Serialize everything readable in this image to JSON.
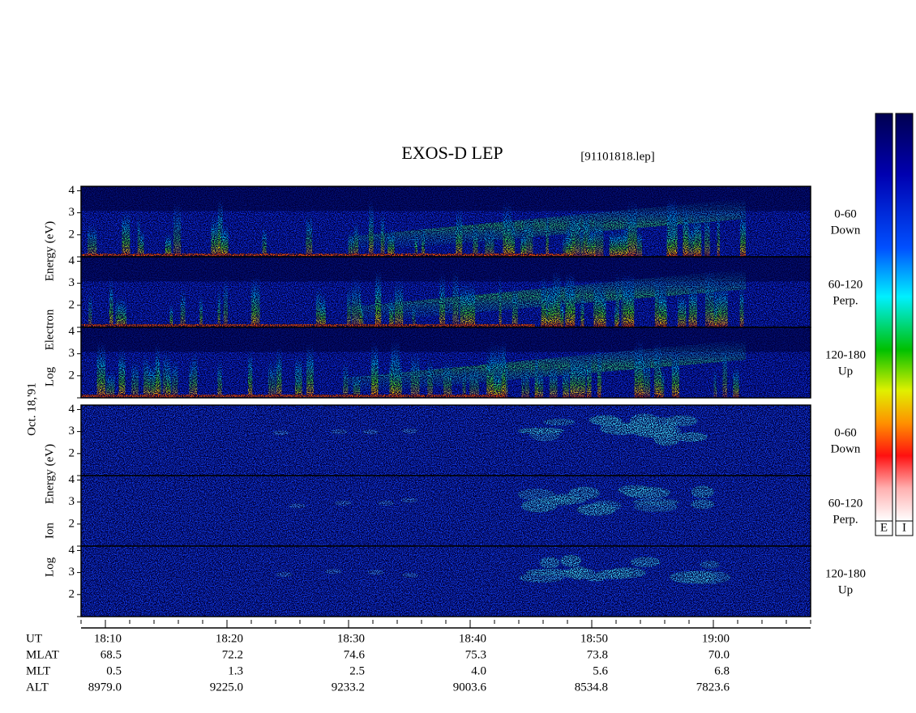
{
  "chart_data": {
    "type": "spectrogram",
    "title": "EXOS-D LEP",
    "file": "[91101818.lep]",
    "date": "Oct. 18,'91",
    "ylim": [
      1,
      4.2
    ],
    "yticks": [
      2,
      3,
      4
    ],
    "groups": [
      {
        "ylabel": [
          "Log",
          "Electron",
          "Energy (eV)"
        ],
        "kind": "electron",
        "panels": [
          [
            "0-60",
            "Down"
          ],
          [
            "60-120",
            "Perp."
          ],
          [
            "120-180",
            "Up"
          ]
        ]
      },
      {
        "ylabel": [
          "Log",
          "Ion",
          "Energy (eV)"
        ],
        "kind": "ion",
        "panels": [
          [
            "0-60",
            "Down"
          ],
          [
            "60-120",
            "Perp."
          ],
          [
            "120-180",
            "Up"
          ]
        ]
      }
    ],
    "colorbars": [
      "E",
      "I"
    ],
    "ephemeris": [
      {
        "name": "UT",
        "values": [
          "18:10",
          "18:20",
          "18:30",
          "18:40",
          "18:50",
          "19:00"
        ]
      },
      {
        "name": "MLAT",
        "values": [
          "68.5",
          "72.2",
          "74.6",
          "75.3",
          "73.8",
          "70.0"
        ]
      },
      {
        "name": "MLT",
        "values": [
          "0.5",
          "1.3",
          "2.5",
          "4.0",
          "5.6",
          "6.8"
        ]
      },
      {
        "name": "ALT",
        "values": [
          "8979.0",
          "9225.0",
          "9233.2",
          "9003.6",
          "8534.8",
          "7823.6"
        ]
      }
    ]
  }
}
